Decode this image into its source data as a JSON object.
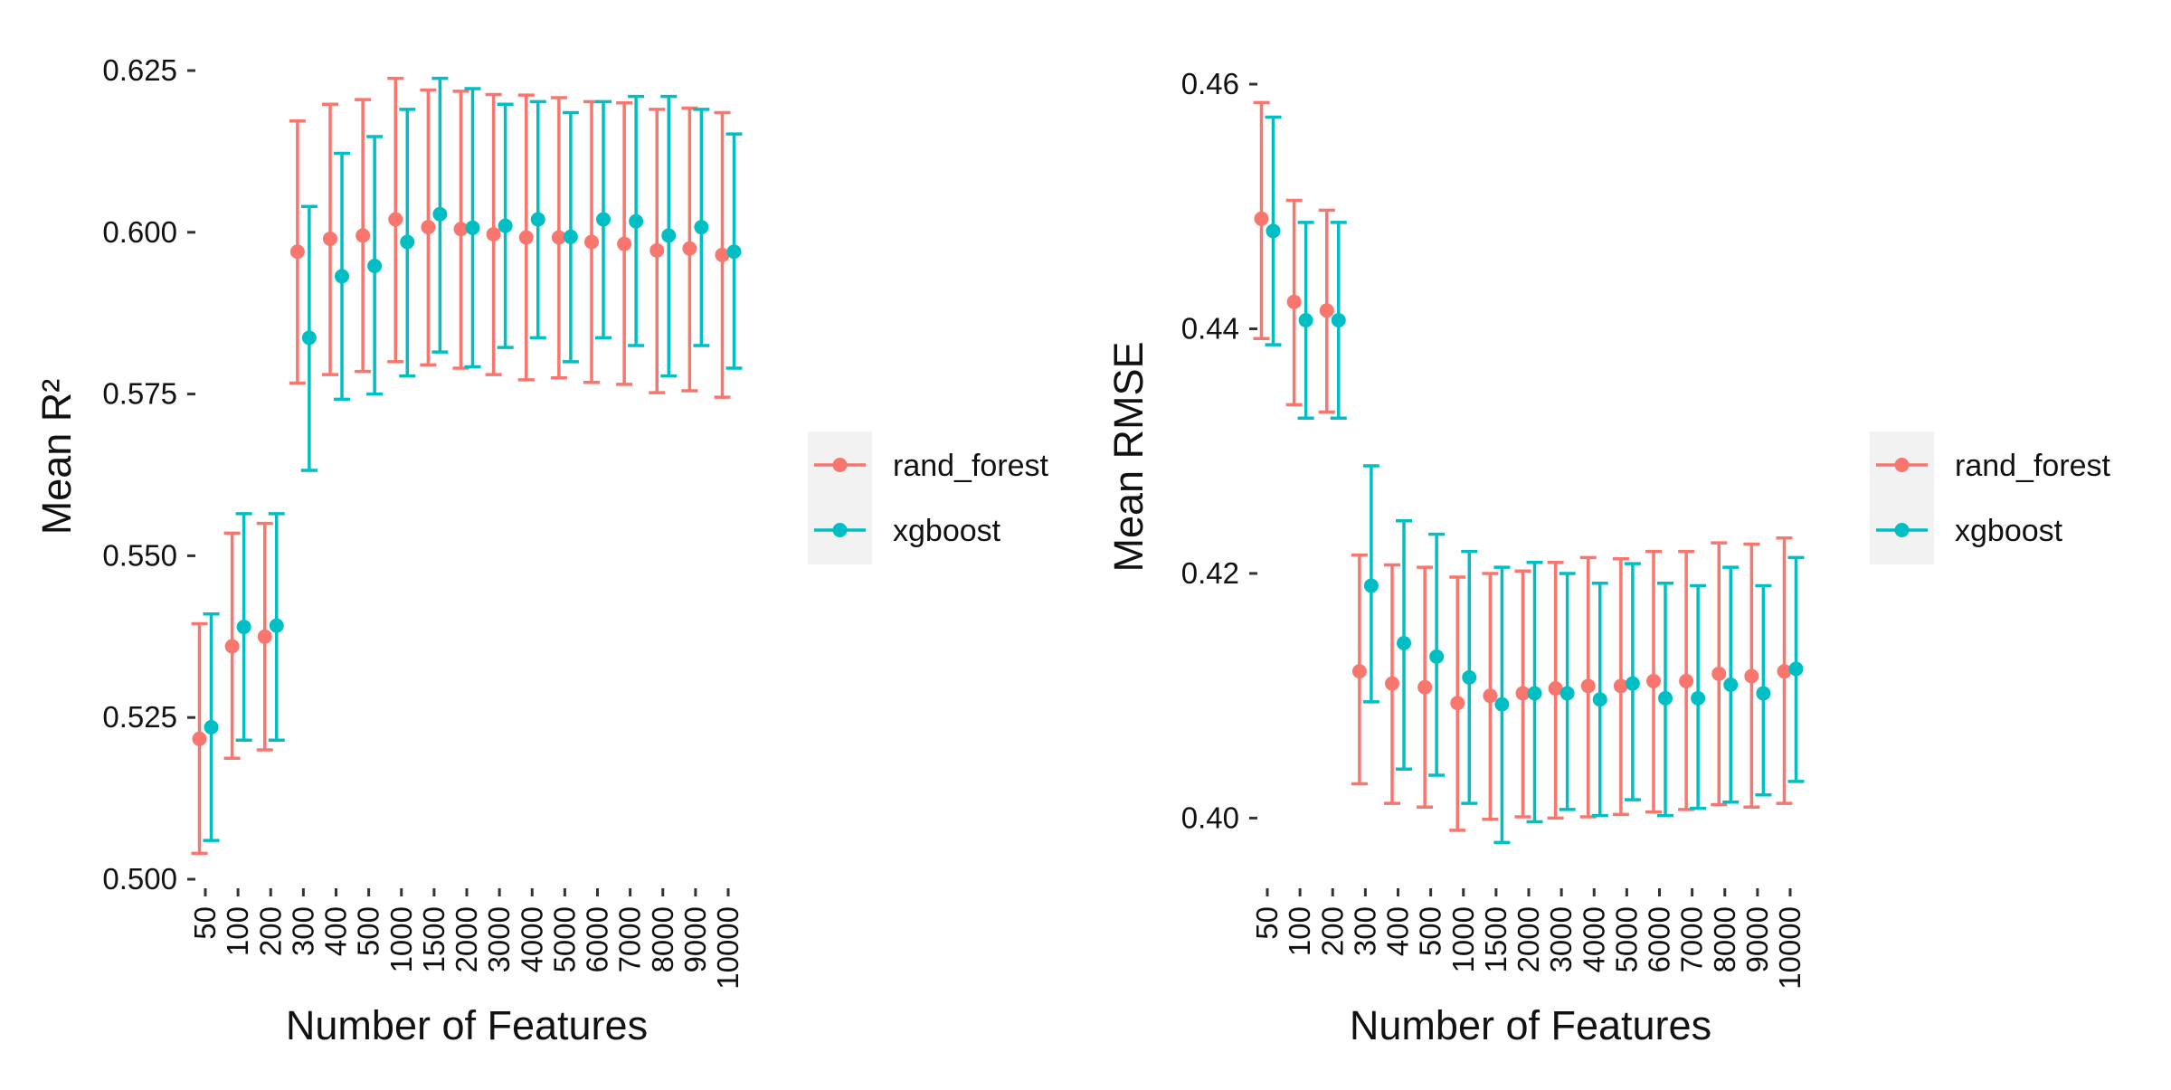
{
  "chart_data": [
    {
      "type": "scatter",
      "title": "",
      "xlabel": "Number of Features",
      "ylabel": "Mean R²",
      "categories": [
        "50",
        "100",
        "200",
        "300",
        "400",
        "500",
        "1000",
        "1500",
        "2000",
        "3000",
        "4000",
        "5000",
        "6000",
        "7000",
        "8000",
        "9000",
        "10000"
      ],
      "ylim": [
        0.5,
        0.625
      ],
      "yticks": [
        "0.500",
        "0.525",
        "0.550",
        "0.575",
        "0.600",
        "0.625"
      ],
      "grid": false,
      "legend_position": "right",
      "series": [
        {
          "name": "rand_forest",
          "color": "#F8766D",
          "values": [
            0.5217,
            0.536,
            0.5375,
            0.597,
            0.599,
            0.5995,
            0.602,
            0.6008,
            0.6005,
            0.5997,
            0.5992,
            0.5992,
            0.5985,
            0.5982,
            0.5972,
            0.5975,
            0.5965
          ],
          "lower": [
            0.504,
            0.5187,
            0.52,
            0.5767,
            0.578,
            0.5785,
            0.58,
            0.5795,
            0.579,
            0.578,
            0.5772,
            0.5775,
            0.5768,
            0.5765,
            0.5752,
            0.5755,
            0.5745
          ],
          "upper": [
            0.5395,
            0.5535,
            0.555,
            0.6172,
            0.6198,
            0.6205,
            0.6238,
            0.622,
            0.6218,
            0.6213,
            0.6212,
            0.6208,
            0.6202,
            0.62,
            0.619,
            0.6192,
            0.6185
          ]
        },
        {
          "name": "xgboost",
          "color": "#00BFC4",
          "values": [
            0.5235,
            0.539,
            0.5392,
            0.5837,
            0.5932,
            0.5948,
            0.5985,
            0.6028,
            0.6007,
            0.601,
            0.602,
            0.5993,
            0.602,
            0.6017,
            0.5995,
            0.6008,
            0.597
          ],
          "lower": [
            0.506,
            0.5215,
            0.5215,
            0.5632,
            0.5742,
            0.575,
            0.5778,
            0.5815,
            0.5792,
            0.5822,
            0.5837,
            0.58,
            0.5837,
            0.5825,
            0.5778,
            0.5825,
            0.579
          ],
          "upper": [
            0.541,
            0.5565,
            0.5565,
            0.604,
            0.6122,
            0.6148,
            0.619,
            0.6238,
            0.6222,
            0.6198,
            0.6202,
            0.6185,
            0.6202,
            0.621,
            0.621,
            0.619,
            0.6152
          ]
        }
      ]
    },
    {
      "type": "scatter",
      "title": "",
      "xlabel": "Number of Features",
      "ylabel": "Mean RMSE",
      "categories": [
        "50",
        "100",
        "200",
        "300",
        "400",
        "500",
        "1000",
        "1500",
        "2000",
        "3000",
        "4000",
        "5000",
        "6000",
        "7000",
        "8000",
        "9000",
        "10000"
      ],
      "ylim": [
        0.395,
        0.462
      ],
      "yticks": [
        "0.40",
        "0.42",
        "0.44",
        "0.46"
      ],
      "grid": false,
      "legend_position": "right",
      "series": [
        {
          "name": "rand_forest",
          "color": "#F8766D",
          "values": [
            0.449,
            0.4422,
            0.4415,
            0.412,
            0.411,
            0.4107,
            0.4094,
            0.41,
            0.4102,
            0.4106,
            0.4108,
            0.4108,
            0.4112,
            0.4112,
            0.4118,
            0.4116,
            0.412
          ],
          "lower": [
            0.4392,
            0.4338,
            0.4332,
            0.4028,
            0.4012,
            0.4009,
            0.399,
            0.3999,
            0.4001,
            0.4,
            0.4001,
            0.4003,
            0.4005,
            0.4007,
            0.4011,
            0.4009,
            0.4012
          ],
          "upper": [
            0.4585,
            0.4505,
            0.4497,
            0.4215,
            0.4207,
            0.4205,
            0.4197,
            0.42,
            0.4202,
            0.4209,
            0.4213,
            0.4212,
            0.4218,
            0.4218,
            0.4225,
            0.4224,
            0.4229
          ]
        },
        {
          "name": "xgboost",
          "color": "#00BFC4",
          "values": [
            0.448,
            0.4407,
            0.4407,
            0.419,
            0.4143,
            0.4132,
            0.4115,
            0.4093,
            0.4102,
            0.4102,
            0.4097,
            0.411,
            0.4098,
            0.4098,
            0.4109,
            0.4102,
            0.4122
          ],
          "lower": [
            0.4387,
            0.4327,
            0.4327,
            0.4095,
            0.404,
            0.4035,
            0.4012,
            0.398,
            0.3997,
            0.4007,
            0.4002,
            0.4015,
            0.4002,
            0.4008,
            0.4013,
            0.4019,
            0.403
          ],
          "upper": [
            0.4573,
            0.4487,
            0.4487,
            0.4288,
            0.4243,
            0.4232,
            0.4218,
            0.4205,
            0.4209,
            0.42,
            0.4192,
            0.4208,
            0.4192,
            0.419,
            0.4205,
            0.419,
            0.4213
          ]
        }
      ]
    }
  ]
}
